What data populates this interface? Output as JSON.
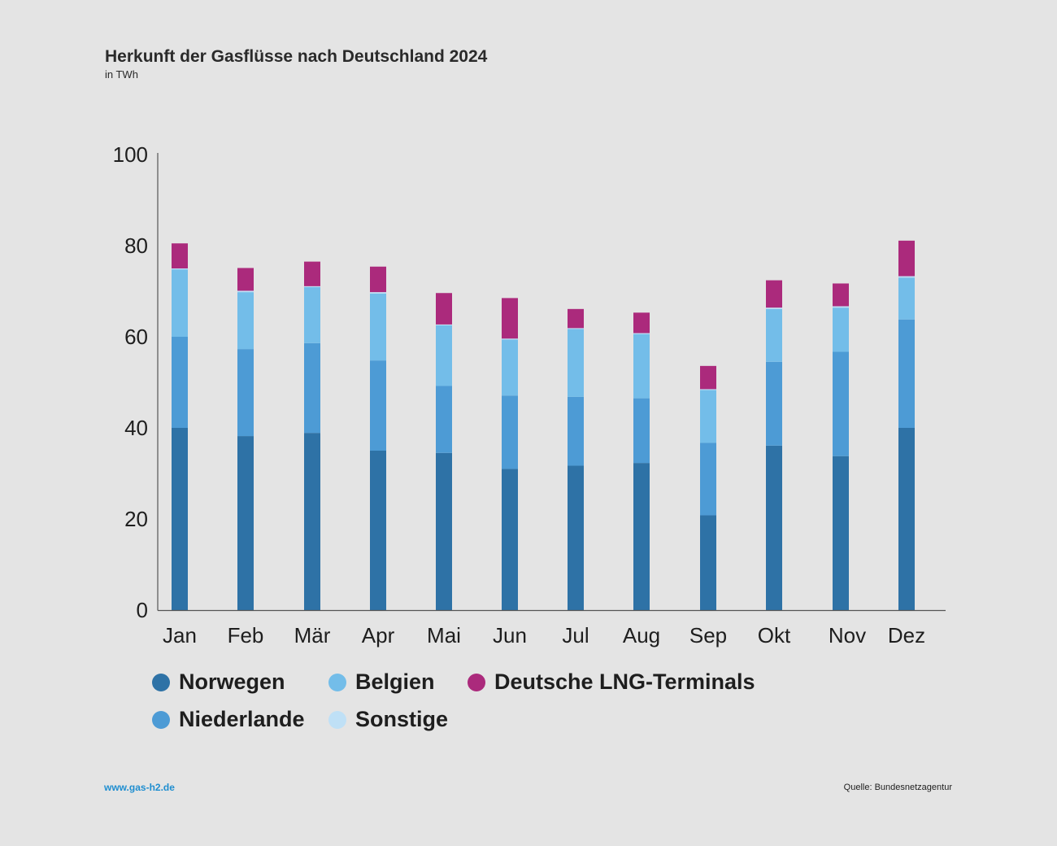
{
  "title": "Herkunft der Gasflüsse nach Deutschland 2024",
  "subtitle": "in TWh",
  "footer": {
    "url": "www.gas-h2.de",
    "source": "Quelle: Bundesnetzagentur"
  },
  "colors": {
    "norwegen": "#2e72a6",
    "niederlande": "#4d9bd5",
    "belgien": "#73bde9",
    "sonstige": "#bfe0f6",
    "lng": "#ab2a7c",
    "axis": "#555555"
  },
  "chart_data": {
    "type": "bar",
    "stacked": true,
    "title": "Herkunft der Gasflüsse nach Deutschland 2024",
    "ylabel": "in TWh",
    "xlabel": "",
    "ylim": [
      0,
      100
    ],
    "yticks": [
      0,
      20,
      40,
      60,
      80,
      100
    ],
    "categories": [
      "Jan",
      "Feb",
      "Mär",
      "Apr",
      "Mai",
      "Jun",
      "Jul",
      "Aug",
      "Sep",
      "Okt",
      "Nov",
      "Dez"
    ],
    "series": [
      {
        "name": "Norwegen",
        "key": "norwegen",
        "values": [
          40.0,
          38.2,
          38.9,
          35.0,
          34.5,
          31.0,
          31.7,
          32.3,
          20.8,
          36.1,
          33.8,
          40.0
        ]
      },
      {
        "name": "Niederlande",
        "key": "niederlande",
        "values": [
          20.0,
          19.1,
          19.7,
          19.8,
          14.7,
          16.1,
          15.1,
          14.2,
          15.9,
          18.4,
          22.9,
          23.8
        ]
      },
      {
        "name": "Belgien",
        "key": "belgien",
        "values": [
          14.8,
          12.5,
          12.3,
          14.7,
          13.3,
          12.3,
          14.9,
          14.1,
          11.6,
          11.6,
          9.7,
          9.2
        ]
      },
      {
        "name": "Sonstige",
        "key": "sonstige",
        "values": [
          0.2,
          0.3,
          0.2,
          0.3,
          0.2,
          0.2,
          0.2,
          0.2,
          0.2,
          0.3,
          0.3,
          0.3
        ]
      },
      {
        "name": "Deutsche LNG-Terminals",
        "key": "lng",
        "values": [
          5.5,
          5.0,
          5.4,
          5.6,
          6.9,
          8.9,
          4.2,
          4.5,
          5.1,
          6.0,
          5.0,
          7.8
        ]
      }
    ],
    "legend": [
      {
        "name": "Norwegen",
        "key": "norwegen"
      },
      {
        "name": "Belgien",
        "key": "belgien"
      },
      {
        "name": "Deutsche LNG-Terminals",
        "key": "lng"
      },
      {
        "name": "Niederlande",
        "key": "niederlande"
      },
      {
        "name": "Sonstige",
        "key": "sonstige"
      }
    ]
  }
}
